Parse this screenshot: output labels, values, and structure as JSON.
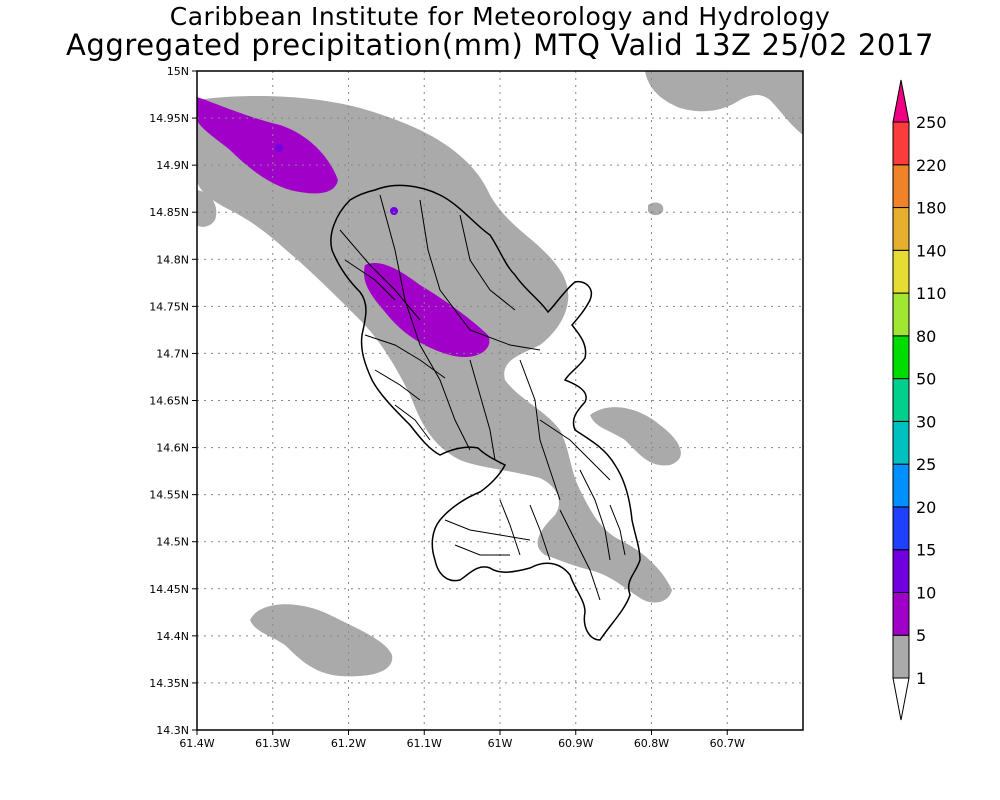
{
  "header": {
    "institute": "Caribbean Institute for Meteorology and Hydrology",
    "product": "Aggregated precipitation(mm) MTQ Valid 13Z 25/02 2017"
  },
  "map": {
    "region": "Martinique",
    "lon_range": [
      -61.4,
      -60.6
    ],
    "lat_range": [
      14.3,
      15.0
    ],
    "x_ticks": [
      "61.4W",
      "61.3W",
      "61.2W",
      "61.1W",
      "61W",
      "60.9W",
      "60.8W",
      "60.7W"
    ],
    "y_ticks": [
      "15N",
      "14.95N",
      "14.9N",
      "14.85N",
      "14.8N",
      "14.75N",
      "14.7N",
      "14.65N",
      "14.6N",
      "14.55N",
      "14.5N",
      "14.45N",
      "14.4N",
      "14.35N",
      "14.3N"
    ],
    "grid": "dotted",
    "precip_classes_present": [
      "1-5 mm",
      "5-10 mm",
      "10-15 mm"
    ]
  },
  "colorbar": {
    "placement": "right",
    "labels": [
      "1",
      "5",
      "10",
      "15",
      "20",
      "25",
      "30",
      "50",
      "80",
      "110",
      "140",
      "180",
      "220",
      "250"
    ],
    "colors": [
      "#aaaaaa",
      "#a000c8",
      "#7000e0",
      "#2040ff",
      "#0090ff",
      "#00c0c0",
      "#00d08c",
      "#00dc00",
      "#a0e632",
      "#e6dc32",
      "#e6af2d",
      "#f08228",
      "#fa3c3c",
      "#f00082"
    ]
  }
}
